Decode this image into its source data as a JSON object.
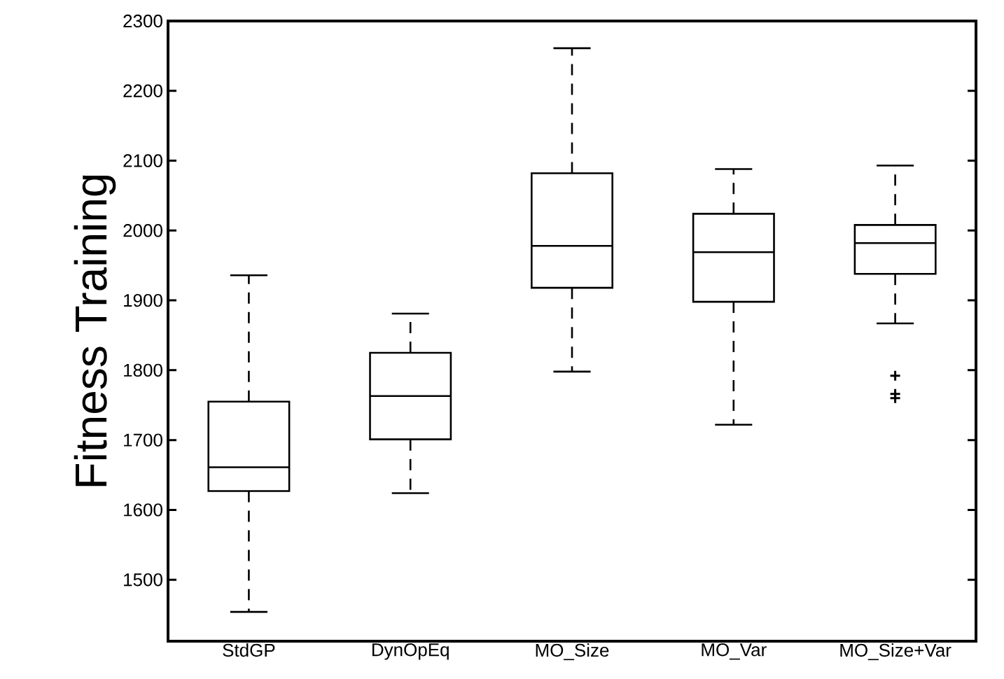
{
  "chart_data": {
    "type": "box",
    "ylabel": "Fitness Training",
    "categories": [
      "StdGP",
      "DynOpEq",
      "MO_Size",
      "MO_Var",
      "MO_Size+Var"
    ],
    "boxes": [
      {
        "low": 1454,
        "q1": 1627,
        "median": 1661,
        "q3": 1755,
        "high": 1936
      },
      {
        "low": 1624,
        "q1": 1701,
        "median": 1763,
        "q3": 1825,
        "high": 1881
      },
      {
        "low": 1798,
        "q1": 1918,
        "median": 1978,
        "q3": 2082,
        "high": 2261
      },
      {
        "low": 1722,
        "q1": 1898,
        "median": 1969,
        "q3": 2024,
        "high": 2088
      },
      {
        "low": 1867,
        "q1": 1938,
        "median": 1982,
        "q3": 2008,
        "high": 2093,
        "outliers": [
          1792,
          1766,
          1760
        ]
      }
    ],
    "ylim": [
      1412,
      2300
    ],
    "yticks": [
      1500,
      1600,
      1700,
      1800,
      1900,
      2000,
      2100,
      2200,
      2300
    ]
  }
}
